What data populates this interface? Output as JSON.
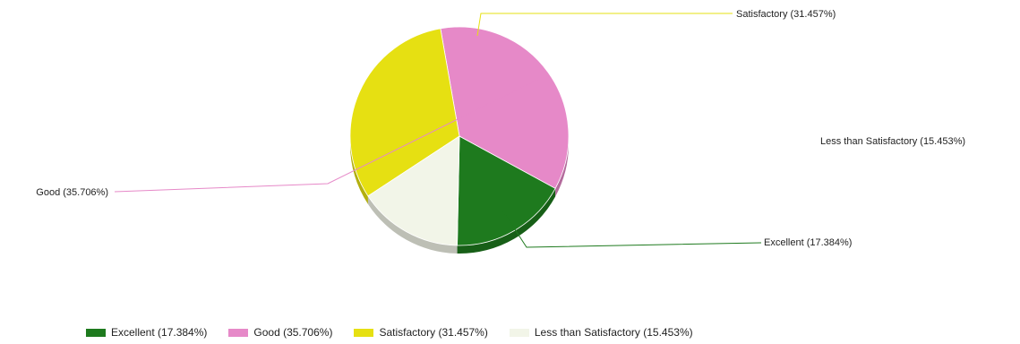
{
  "chart_data": {
    "type": "pie",
    "title": "",
    "slices": [
      {
        "label": "Excellent",
        "value": 17.384,
        "display": "Excellent (17.384%)",
        "color": "#1e7a1e"
      },
      {
        "label": "Good",
        "value": 35.706,
        "display": "Good (35.706%)",
        "color": "#e689c8"
      },
      {
        "label": "Satisfactory",
        "value": 31.457,
        "display": "Satisfactory (31.457%)",
        "color": "#e6e012"
      },
      {
        "label": "Less than Satisfactory",
        "value": 15.453,
        "display": "Less than Satisfactory (15.453%)",
        "color": "#f2f5e8"
      }
    ],
    "legend_position": "bottom",
    "style": "3d-pie"
  }
}
